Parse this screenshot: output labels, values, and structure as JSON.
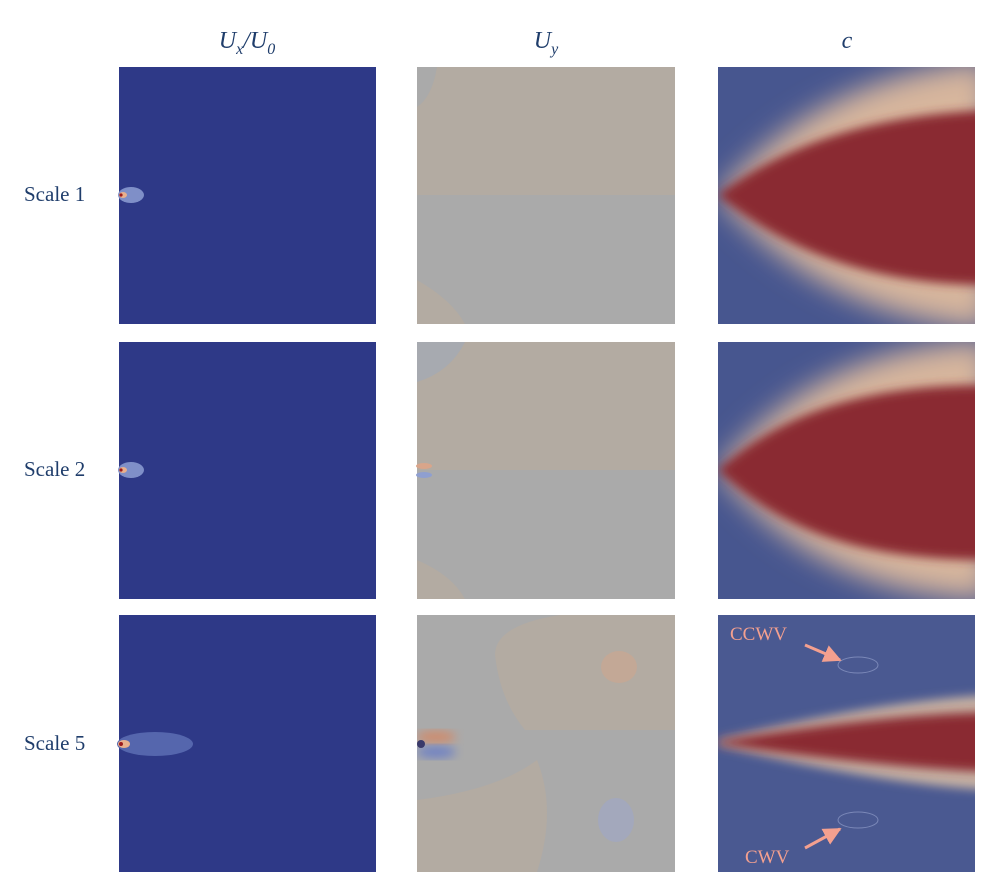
{
  "columns": [
    [
      "U",
      "x",
      "/U",
      "0"
    ],
    [
      "U",
      "y"
    ],
    [
      "c"
    ]
  ],
  "rows": [
    "Scale 1",
    "Scale 2",
    "Scale 5"
  ],
  "annotations": [
    "CCWV",
    "CWV"
  ]
}
